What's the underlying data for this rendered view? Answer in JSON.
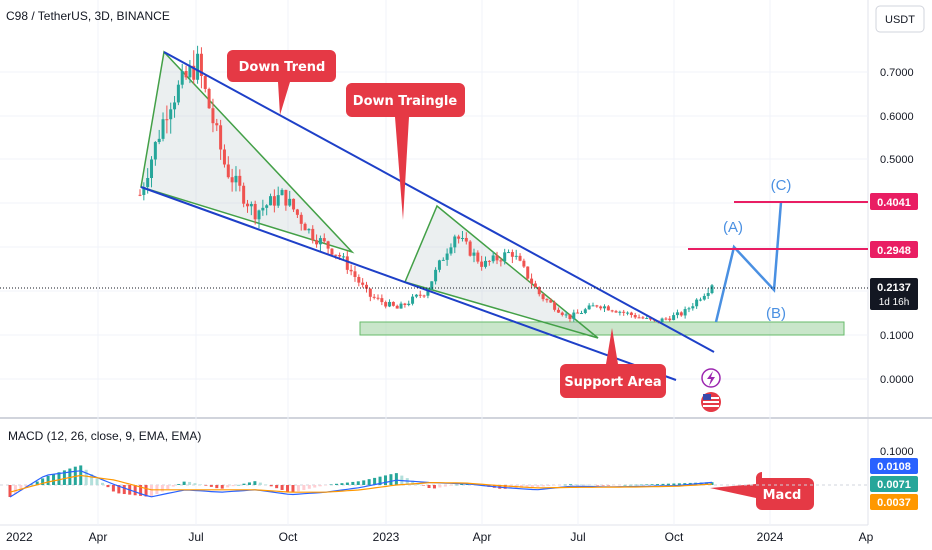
{
  "header": {
    "symbol_title": "C98 / TetherUS, 3D, BINANCE",
    "currency_button": "USDT"
  },
  "price_axis": {
    "ticks": [
      "0.7000",
      "0.6000",
      "0.5000",
      "0.1000",
      "0.0000"
    ],
    "labels": [
      {
        "value": 0.4041,
        "text": "0.4041",
        "color": "#e91e63"
      },
      {
        "value": 0.2948,
        "text": "0.2948",
        "color": "#e91e63"
      },
      {
        "value": 0.2137,
        "text": "0.2137",
        "subtext": "1d 16h",
        "color": "#131722"
      }
    ]
  },
  "macd_axis": {
    "title": "MACD (12, 26, close, 9, EMA, EMA)",
    "ticks": [
      "0.1000"
    ],
    "labels": [
      {
        "text": "0.0108",
        "color": "#2962ff"
      },
      {
        "text": "0.0071",
        "color": "#26a69a"
      },
      {
        "text": "0.0037",
        "color": "#ff9800"
      }
    ]
  },
  "time_axis": [
    "2022",
    "Apr",
    "Jul",
    "Oct",
    "2023",
    "Apr",
    "Jul",
    "Oct",
    "2024",
    "Ap"
  ],
  "annotations": {
    "down_trend": "Down Trend",
    "down_triangle": "Down Traingle",
    "support_area": "Support Area",
    "macd": "Macd",
    "wave_a": "(A)",
    "wave_b": "(B)",
    "wave_c": "(C)"
  },
  "icons": [
    "lightning-icon",
    "us-flag-icon"
  ],
  "colors": {
    "up": "#26a69a",
    "down": "#ef5350",
    "trend_line": "#1e40c8",
    "triangle": "#43a047",
    "wave": "#4a90e2",
    "target": "#e91e63",
    "callout": "#e53945",
    "support": "#a5d6a7"
  },
  "chart_data": [
    {
      "type": "candlestick",
      "title": "C98 / TetherUS, 3D, BINANCE",
      "x": [
        "2022-03-01",
        "2022-04-01",
        "2022-05-01",
        "2022-06-01",
        "2022-07-01",
        "2022-08-01",
        "2022-09-01",
        "2022-10-01",
        "2022-11-01",
        "2022-12-01",
        "2023-01-01",
        "2023-02-01",
        "2023-03-01",
        "2023-04-01",
        "2023-05-01",
        "2023-06-01",
        "2023-07-01",
        "2023-08-01",
        "2023-09-01",
        "2023-10-01",
        "2023-11-01"
      ],
      "close": [
        0.42,
        0.63,
        0.72,
        0.48,
        0.38,
        0.42,
        0.33,
        0.28,
        0.19,
        0.16,
        0.2,
        0.33,
        0.26,
        0.29,
        0.19,
        0.14,
        0.17,
        0.15,
        0.13,
        0.15,
        0.2137
      ],
      "last_price": 0.2137,
      "ylim": [
        -0.05,
        0.82
      ]
    },
    {
      "type": "bar",
      "title": "MACD (12, 26, close, 9, EMA, EMA)",
      "series": [
        {
          "name": "Histogram",
          "values": [
            -0.03,
            0.02,
            0.05,
            -0.02,
            -0.03,
            0.01,
            -0.01,
            0.01,
            -0.02,
            0.0,
            0.01,
            0.03,
            -0.01,
            0.005,
            -0.01,
            -0.005,
            0.002,
            -0.001,
            0.001,
            0.004,
            0.0071
          ]
        },
        {
          "name": "MACD",
          "values": [
            -0.05,
            0.04,
            0.06,
            0.0,
            -0.05,
            -0.02,
            -0.03,
            -0.02,
            -0.04,
            -0.03,
            -0.01,
            0.02,
            0.01,
            0.005,
            -0.01,
            -0.02,
            -0.005,
            -0.008,
            -0.006,
            -0.002,
            0.0108
          ]
        },
        {
          "name": "Signal",
          "values": [
            -0.03,
            0.01,
            0.04,
            0.02,
            -0.02,
            -0.02,
            -0.02,
            -0.02,
            -0.03,
            -0.03,
            -0.02,
            0.0,
            0.01,
            0.008,
            -0.003,
            -0.012,
            -0.01,
            -0.009,
            -0.008,
            -0.005,
            0.0037
          ]
        }
      ],
      "ylim": [
        -0.1,
        0.12
      ]
    }
  ]
}
